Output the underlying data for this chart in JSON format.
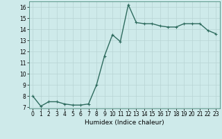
{
  "x": [
    0,
    1,
    2,
    3,
    4,
    5,
    6,
    7,
    8,
    9,
    10,
    11,
    12,
    13,
    14,
    15,
    16,
    17,
    18,
    19,
    20,
    21,
    22,
    23
  ],
  "y": [
    8.0,
    7.1,
    7.5,
    7.5,
    7.3,
    7.2,
    7.2,
    7.3,
    9.0,
    11.6,
    13.5,
    12.9,
    16.2,
    14.6,
    14.5,
    14.5,
    14.3,
    14.2,
    14.2,
    14.5,
    14.5,
    14.5,
    13.9,
    13.6
  ],
  "line_color": "#2e6b5e",
  "marker": "+",
  "marker_size": 3,
  "linewidth": 1.0,
  "xlabel": "Humidex (Indice chaleur)",
  "xlim": [
    -0.5,
    23.5
  ],
  "ylim": [
    6.9,
    16.5
  ],
  "yticks": [
    7,
    8,
    9,
    10,
    11,
    12,
    13,
    14,
    15,
    16
  ],
  "xticks": [
    0,
    1,
    2,
    3,
    4,
    5,
    6,
    7,
    8,
    9,
    10,
    11,
    12,
    13,
    14,
    15,
    16,
    17,
    18,
    19,
    20,
    21,
    22,
    23
  ],
  "bg_color": "#ceeaea",
  "grid_color": "#b8d4d4",
  "tick_fontsize": 5.5,
  "label_fontsize": 6.5
}
